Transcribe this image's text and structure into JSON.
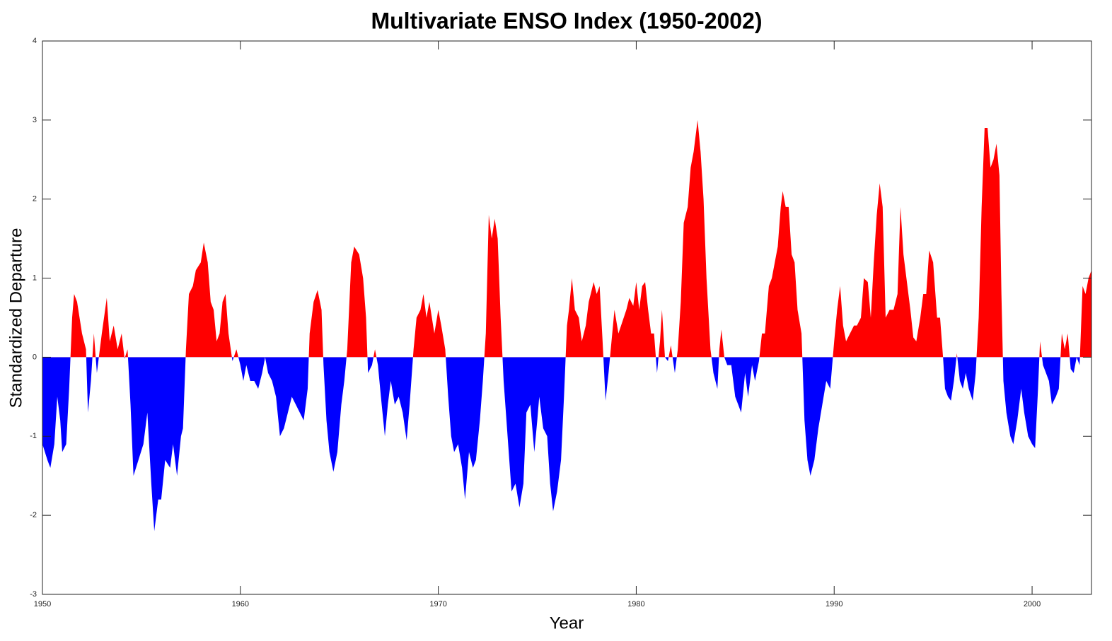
{
  "chart_data": {
    "type": "area",
    "title": "Multivariate ENSO Index (1950-2002)",
    "xlabel": "Year",
    "ylabel": "Standardized Departure",
    "color_positive": "#ff0000",
    "color_negative": "#0000ff",
    "xlim": [
      1950,
      2003
    ],
    "ylim": [
      -3,
      4
    ],
    "xticks": [
      1950,
      1960,
      1970,
      1980,
      1990,
      2000
    ],
    "yticks": [
      -3,
      -2,
      -1,
      0,
      1,
      2,
      3,
      4
    ],
    "grid": false,
    "x": [
      1950,
      1950.25,
      1950.4,
      1950.6,
      1950.75,
      1950.9,
      1951,
      1951.2,
      1951.35,
      1951.5,
      1951.6,
      1951.75,
      1952,
      1952.2,
      1952.3,
      1952.45,
      1952.6,
      1952.75,
      1953,
      1953.25,
      1953.4,
      1953.6,
      1953.8,
      1954,
      1954.15,
      1954.3,
      1954.45,
      1954.6,
      1954.85,
      1955.1,
      1955.3,
      1955.5,
      1955.65,
      1955.85,
      1956,
      1956.2,
      1956.45,
      1956.6,
      1956.8,
      1957,
      1957.1,
      1957.25,
      1957.4,
      1957.6,
      1957.75,
      1958,
      1958.15,
      1958.35,
      1958.5,
      1958.65,
      1958.8,
      1958.95,
      1959.1,
      1959.25,
      1959.4,
      1959.6,
      1959.8,
      1960,
      1960.15,
      1960.3,
      1960.5,
      1960.7,
      1960.9,
      1961.1,
      1961.25,
      1961.4,
      1961.6,
      1961.8,
      1962,
      1962.2,
      1962.4,
      1962.6,
      1962.8,
      1963,
      1963.2,
      1963.4,
      1963.5,
      1963.7,
      1963.9,
      1964.1,
      1964.2,
      1964.35,
      1964.5,
      1964.7,
      1964.9,
      1965.1,
      1965.25,
      1965.4,
      1965.6,
      1965.75,
      1966,
      1966.2,
      1966.35,
      1966.45,
      1966.65,
      1966.8,
      1966.95,
      1967.1,
      1967.3,
      1967.45,
      1967.6,
      1967.8,
      1968,
      1968.2,
      1968.4,
      1968.55,
      1968.75,
      1968.9,
      1969.1,
      1969.25,
      1969.4,
      1969.55,
      1969.8,
      1970,
      1970.15,
      1970.35,
      1970.5,
      1970.65,
      1970.8,
      1971,
      1971.2,
      1971.35,
      1971.55,
      1971.75,
      1971.9,
      1972.1,
      1972.25,
      1972.4,
      1972.55,
      1972.7,
      1972.85,
      1973,
      1973.15,
      1973.3,
      1973.5,
      1973.7,
      1973.9,
      1974.1,
      1974.3,
      1974.45,
      1974.65,
      1974.85,
      1975,
      1975.1,
      1975.3,
      1975.5,
      1975.65,
      1975.8,
      1976,
      1976.2,
      1976.35,
      1976.5,
      1976.6,
      1976.75,
      1976.9,
      1977.1,
      1977.25,
      1977.45,
      1977.6,
      1977.85,
      1978,
      1978.15,
      1978.3,
      1978.45,
      1978.6,
      1978.75,
      1978.9,
      1979.1,
      1979.3,
      1979.5,
      1979.65,
      1979.85,
      1980,
      1980.15,
      1980.3,
      1980.45,
      1980.6,
      1980.75,
      1980.9,
      1981.05,
      1981.2,
      1981.3,
      1981.45,
      1981.6,
      1981.75,
      1981.95,
      1982.1,
      1982.25,
      1982.4,
      1982.6,
      1982.75,
      1982.9,
      1983.1,
      1983.25,
      1983.4,
      1983.55,
      1983.75,
      1983.9,
      1984.1,
      1984.2,
      1984.3,
      1984.45,
      1984.6,
      1984.8,
      1985,
      1985.15,
      1985.3,
      1985.5,
      1985.65,
      1985.85,
      1986,
      1986.2,
      1986.35,
      1986.5,
      1986.7,
      1986.85,
      1987,
      1987.15,
      1987.3,
      1987.4,
      1987.55,
      1987.7,
      1987.85,
      1988,
      1988.15,
      1988.35,
      1988.5,
      1988.65,
      1988.8,
      1989,
      1989.2,
      1989.4,
      1989.6,
      1989.8,
      1990,
      1990.15,
      1990.3,
      1990.45,
      1990.6,
      1990.8,
      1991,
      1991.15,
      1991.35,
      1991.5,
      1991.7,
      1991.85,
      1992,
      1992.15,
      1992.3,
      1992.45,
      1992.6,
      1992.8,
      1993,
      1993.2,
      1993.35,
      1993.5,
      1993.65,
      1993.85,
      1994,
      1994.15,
      1994.35,
      1994.5,
      1994.65,
      1994.8,
      1995,
      1995.2,
      1995.35,
      1995.5,
      1995.6,
      1995.75,
      1995.9,
      1996.05,
      1996.2,
      1996.35,
      1996.5,
      1996.65,
      1996.8,
      1997,
      1997.15,
      1997.3,
      1997.45,
      1997.6,
      1997.75,
      1997.9,
      1998.05,
      1998.2,
      1998.35,
      1998.45,
      1998.55,
      1998.7,
      1998.9,
      1999.05,
      1999.25,
      1999.45,
      1999.6,
      1999.8,
      2000,
      2000.15,
      2000.3,
      2000.4,
      2000.55,
      2000.7,
      2000.85,
      2001,
      2001.2,
      2001.35,
      2001.5,
      2001.65,
      2001.8,
      2001.95,
      2002.1,
      2002.25,
      2002.4,
      2002.55,
      2002.7,
      2002.85,
      2003
    ],
    "values": [
      -1.1,
      -1.3,
      -1.4,
      -1.1,
      -0.5,
      -0.8,
      -1.2,
      -1.1,
      -0.4,
      0.5,
      0.8,
      0.7,
      0.3,
      0.1,
      -0.7,
      -0.3,
      0.3,
      -0.2,
      0.3,
      0.75,
      0.2,
      0.4,
      0.1,
      0.3,
      -0.02,
      0.1,
      -0.6,
      -1.5,
      -1.3,
      -1.1,
      -0.7,
      -1.6,
      -2.2,
      -1.8,
      -1.8,
      -1.3,
      -1.4,
      -1.1,
      -1.5,
      -1.0,
      -0.9,
      0.1,
      0.8,
      0.9,
      1.1,
      1.2,
      1.45,
      1.2,
      0.7,
      0.6,
      0.2,
      0.3,
      0.7,
      0.8,
      0.3,
      -0.05,
      0.1,
      -0.1,
      -0.3,
      -0.1,
      -0.3,
      -0.3,
      -0.4,
      -0.2,
      0,
      -0.2,
      -0.3,
      -0.5,
      -1.0,
      -0.9,
      -0.7,
      -0.5,
      -0.6,
      -0.7,
      -0.8,
      -0.4,
      0.3,
      0.7,
      0.85,
      0.6,
      -0.1,
      -0.8,
      -1.2,
      -1.45,
      -1.2,
      -0.6,
      -0.3,
      0.1,
      1.2,
      1.4,
      1.3,
      1.0,
      0.5,
      -0.2,
      -0.1,
      0.1,
      -0.1,
      -0.5,
      -1.0,
      -0.6,
      -0.3,
      -0.6,
      -0.5,
      -0.7,
      -1.05,
      -0.6,
      0.1,
      0.5,
      0.6,
      0.8,
      0.5,
      0.7,
      0.3,
      0.6,
      0.4,
      0.1,
      -0.5,
      -1.0,
      -1.2,
      -1.1,
      -1.4,
      -1.8,
      -1.2,
      -1.4,
      -1.3,
      -0.8,
      -0.3,
      0.3,
      1.8,
      1.5,
      1.75,
      1.5,
      0.5,
      -0.3,
      -1.0,
      -1.7,
      -1.6,
      -1.9,
      -1.6,
      -0.7,
      -0.6,
      -1.2,
      -0.8,
      -0.5,
      -0.9,
      -1.0,
      -1.6,
      -1.95,
      -1.7,
      -1.3,
      -0.5,
      0.4,
      0.6,
      1.0,
      0.6,
      0.5,
      0.2,
      0.4,
      0.7,
      0.95,
      0.8,
      0.9,
      0.2,
      -0.55,
      -0.2,
      0.2,
      0.6,
      0.3,
      0.45,
      0.6,
      0.75,
      0.65,
      0.95,
      0.6,
      0.9,
      0.95,
      0.6,
      0.3,
      0.3,
      -0.2,
      0.2,
      0.6,
      0,
      -0.05,
      0.15,
      -0.2,
      0.1,
      0.7,
      1.7,
      1.9,
      2.4,
      2.6,
      3.0,
      2.6,
      2.0,
      1.0,
      0.1,
      -0.2,
      -0.4,
      0.1,
      0.35,
      0,
      -0.1,
      -0.1,
      -0.5,
      -0.6,
      -0.7,
      -0.2,
      -0.5,
      -0.1,
      -0.3,
      -0.05,
      0.3,
      0.3,
      0.9,
      1.0,
      1.2,
      1.4,
      1.9,
      2.1,
      1.9,
      1.9,
      1.3,
      1.2,
      0.6,
      0.3,
      -0.8,
      -1.3,
      -1.5,
      -1.3,
      -0.9,
      -0.6,
      -0.3,
      -0.4,
      0.2,
      0.6,
      0.9,
      0.4,
      0.2,
      0.3,
      0.4,
      0.4,
      0.5,
      1.0,
      0.95,
      0.5,
      1.2,
      1.8,
      2.2,
      1.9,
      0.5,
      0.6,
      0.6,
      0.8,
      1.9,
      1.3,
      1.0,
      0.6,
      0.25,
      0.2,
      0.5,
      0.8,
      0.8,
      1.35,
      1.2,
      0.5,
      0.5,
      0,
      -0.4,
      -0.5,
      -0.55,
      -0.3,
      0.05,
      -0.3,
      -0.4,
      -0.2,
      -0.4,
      -0.55,
      -0.2,
      0.5,
      1.9,
      2.9,
      2.9,
      2.4,
      2.5,
      2.7,
      2.3,
      0.8,
      -0.3,
      -0.7,
      -1.0,
      -1.1,
      -0.8,
      -0.4,
      -0.7,
      -1.0,
      -1.1,
      -1.15,
      -0.4,
      0.2,
      -0.1,
      -0.2,
      -0.3,
      -0.6,
      -0.5,
      -0.4,
      0.3,
      0.1,
      0.3,
      -0.15,
      -0.2,
      0,
      -0.1,
      0.9,
      0.8,
      1.0,
      1.1
    ]
  }
}
